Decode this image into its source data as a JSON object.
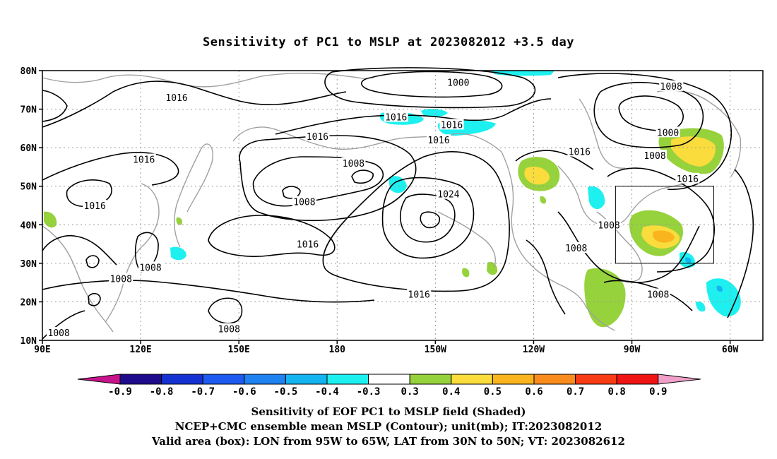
{
  "title": "Sensitivity of PC1 to MSLP at 2023082012 +3.5 day",
  "lat_labels": [
    "80N",
    "70N",
    "60N",
    "50N",
    "40N",
    "30N",
    "20N",
    "10N"
  ],
  "lat_values": [
    80,
    70,
    60,
    50,
    40,
    30,
    20,
    10
  ],
  "lon_labels": [
    "90E",
    "120E",
    "150E",
    "180",
    "150W",
    "120W",
    "90W",
    "60W"
  ],
  "lon_values": [
    90,
    120,
    150,
    180,
    210,
    240,
    270,
    300
  ],
  "extent": {
    "lon_min": 90,
    "lon_max": 310,
    "lat_min": 10,
    "lat_max": 80
  },
  "valid_box": {
    "lon_min": 265,
    "lon_max": 295,
    "lat_min": 30,
    "lat_max": 50
  },
  "contour_labels": [
    {
      "text": "1016",
      "lon": 131,
      "lat": 73
    },
    {
      "text": "1000",
      "lon": 217,
      "lat": 77
    },
    {
      "text": "1008",
      "lon": 282,
      "lat": 76
    },
    {
      "text": "1016",
      "lon": 198,
      "lat": 68
    },
    {
      "text": "1016",
      "lon": 215,
      "lat": 66
    },
    {
      "text": "1000",
      "lon": 281,
      "lat": 64
    },
    {
      "text": "1016",
      "lon": 174,
      "lat": 63
    },
    {
      "text": "1016",
      "lon": 211,
      "lat": 62
    },
    {
      "text": "1016",
      "lon": 121,
      "lat": 57
    },
    {
      "text": "1016",
      "lon": 254,
      "lat": 59
    },
    {
      "text": "1008",
      "lon": 277,
      "lat": 58
    },
    {
      "text": "1008",
      "lon": 185,
      "lat": 56
    },
    {
      "text": "1016",
      "lon": 287,
      "lat": 52
    },
    {
      "text": "1016",
      "lon": 106,
      "lat": 45
    },
    {
      "text": "1024",
      "lon": 214,
      "lat": 48
    },
    {
      "text": "1008",
      "lon": 170,
      "lat": 46
    },
    {
      "text": "1008",
      "lon": 263,
      "lat": 40
    },
    {
      "text": "1016",
      "lon": 171,
      "lat": 35
    },
    {
      "text": "1008",
      "lon": 253,
      "lat": 34
    },
    {
      "text": "1008",
      "lon": 123,
      "lat": 29
    },
    {
      "text": "1008",
      "lon": 114,
      "lat": 26
    },
    {
      "text": "1016",
      "lon": 205,
      "lat": 22
    },
    {
      "text": "1008",
      "lon": 278,
      "lat": 22
    },
    {
      "text": "1008",
      "lon": 147,
      "lat": 13
    },
    {
      "text": "1008",
      "lon": 95,
      "lat": 12
    }
  ],
  "colorbar": {
    "labels": [
      "-0.9",
      "-0.8",
      "-0.7",
      "-0.6",
      "-0.5",
      "-0.4",
      "-0.3",
      "0.3",
      "0.4",
      "0.5",
      "0.6",
      "0.7",
      "0.8",
      "0.9"
    ],
    "colors": [
      "#1e0a8c",
      "#1432d2",
      "#1e5af0",
      "#1e82f0",
      "#14b4f0",
      "#1ef0f0",
      "#ffffff",
      "#96d23c",
      "#fadc3c",
      "#fab41e",
      "#fa8c1e",
      "#fa3c14",
      "#f01414"
    ],
    "low_end": "#c8148c",
    "high_end": "#f0a0c8"
  },
  "captions": [
    "Sensitivity of EOF PC1 to MSLP field (Shaded)",
    "NCEP+CMC ensemble mean MSLP (Contour); unit(mb); IT:2023082012",
    "Valid area (box): LON from 95W to 65W, LAT from 30N to 50N; VT: 2023082612"
  ]
}
